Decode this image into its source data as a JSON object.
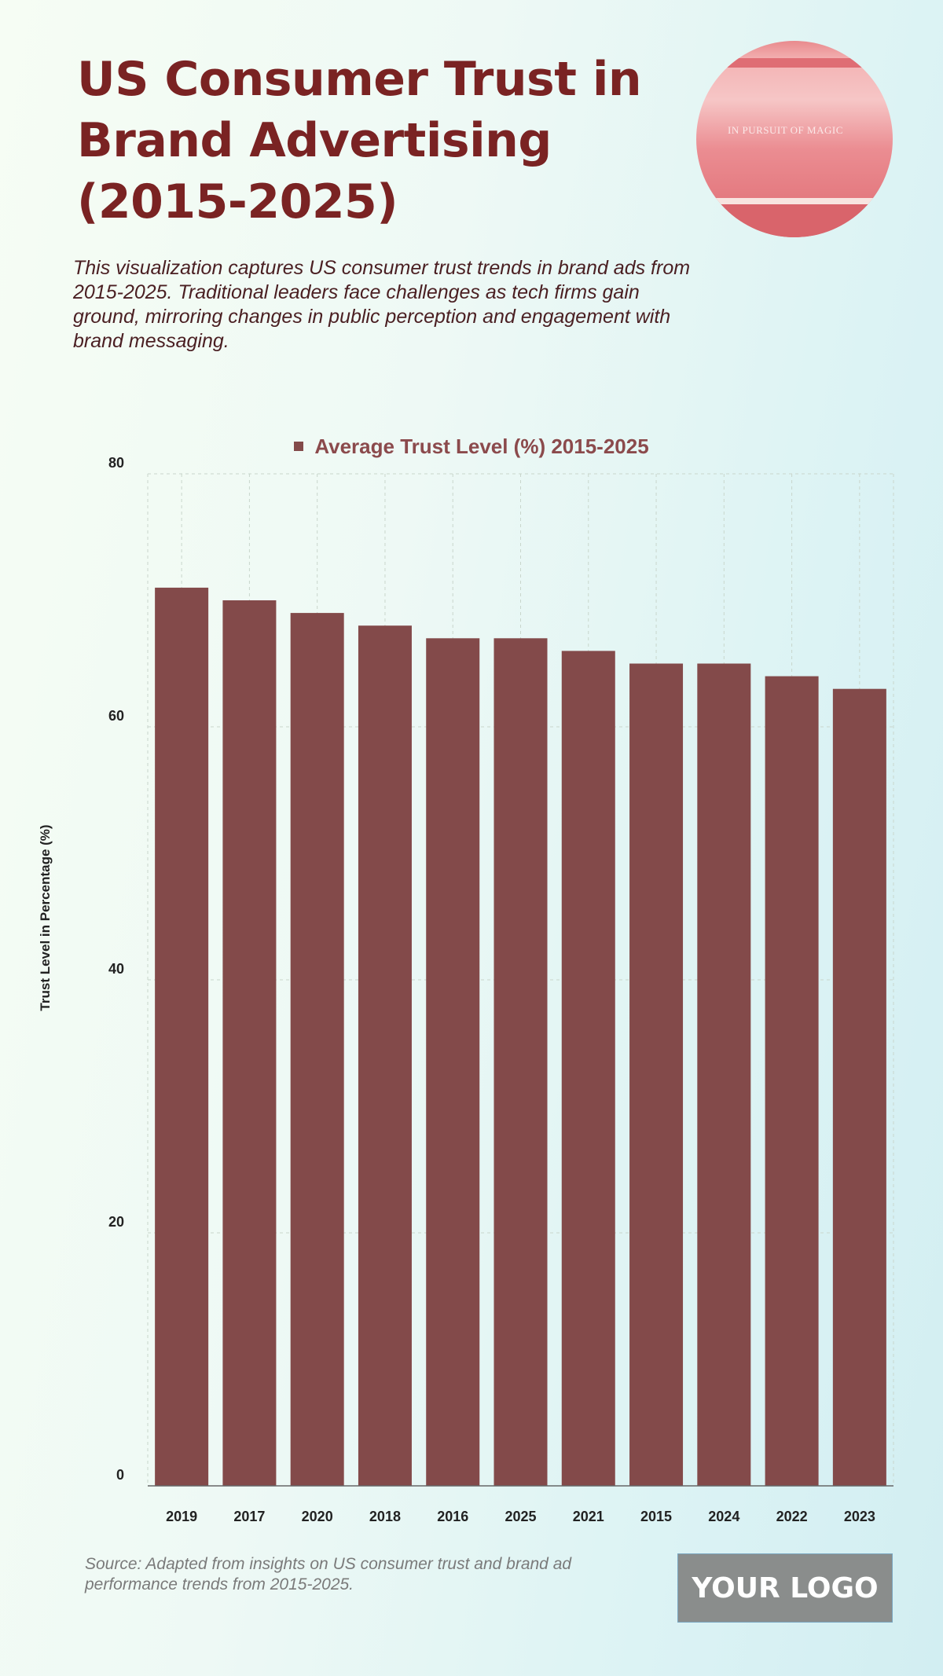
{
  "header": {
    "title": "US Consumer Trust in Brand Advertising (2015-2025)",
    "description": "This visualization captures US consumer trust trends in brand ads from 2015-2025. Traditional leaders face challenges as tech firms gain ground, mirroring changes in public perception and engagement with brand messaging.",
    "photo_text": "IN PURSUIT OF MAGIC"
  },
  "chart_data": {
    "type": "bar",
    "title": "",
    "legend": [
      "Average Trust Level (%) 2015-2025"
    ],
    "legend_position": "top",
    "xlabel": "",
    "ylabel": "Trust Level in Percentage (%)",
    "ylim": [
      0,
      80
    ],
    "yticks": [
      0,
      20,
      40,
      60,
      80
    ],
    "grid": true,
    "categories": [
      "2019",
      "2017",
      "2020",
      "2018",
      "2016",
      "2025",
      "2021",
      "2015",
      "2024",
      "2022",
      "2023"
    ],
    "series": [
      {
        "name": "Average Trust Level (%) 2015-2025",
        "values": [
          71,
          70,
          69,
          68,
          67,
          67,
          66,
          65,
          65,
          64,
          63
        ]
      }
    ],
    "colors": {
      "bar": "#834a4a"
    }
  },
  "footer": {
    "source": "Source: Adapted from insights on US consumer trust and brand ad performance trends from 2015-2025.",
    "logo": "YOUR LOGO"
  }
}
